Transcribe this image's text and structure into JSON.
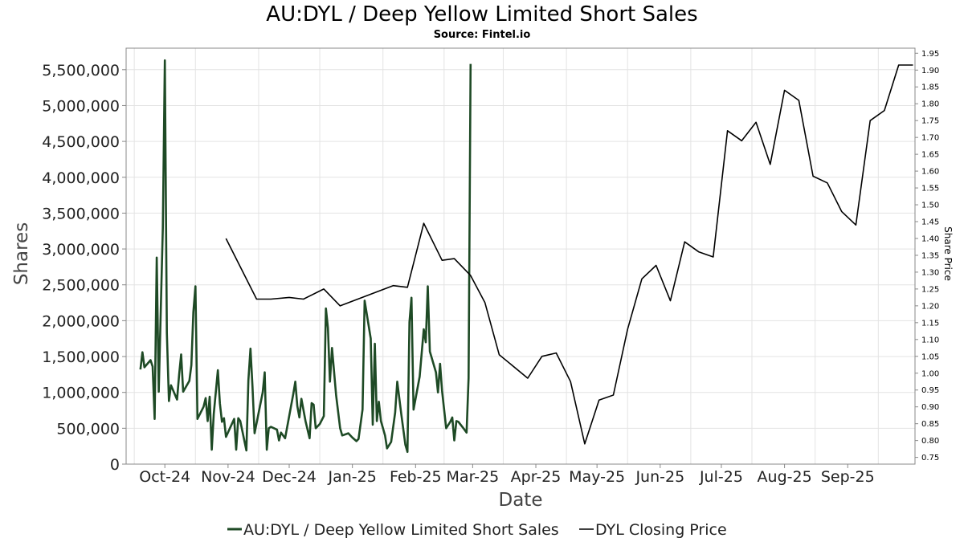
{
  "chart_data": {
    "type": "line",
    "title": "AU:DYL / Deep Yellow Limited Short Sales",
    "subtitle": "Source: Fintel.io",
    "xlabel": "Date",
    "ylabel": "Shares",
    "y2label": "Share Price",
    "xlim": [
      "2024-09-12",
      "2025-10-04"
    ],
    "ylim": [
      0,
      5800000
    ],
    "y2lim": [
      0.73,
      1.965
    ],
    "grid": true,
    "legend_position": "bottom",
    "x_ticks": [
      {
        "label": "Oct-24",
        "date": "2024-10-01"
      },
      {
        "label": "Nov-24",
        "date": "2024-11-01"
      },
      {
        "label": "Dec-24",
        "date": "2024-12-01"
      },
      {
        "label": "Jan-25",
        "date": "2025-01-01"
      },
      {
        "label": "Feb-25",
        "date": "2025-02-01"
      },
      {
        "label": "Mar-25",
        "date": "2025-03-01"
      },
      {
        "label": "Apr-25",
        "date": "2025-04-01"
      },
      {
        "label": "May-25",
        "date": "2025-05-01"
      },
      {
        "label": "Jun-25",
        "date": "2025-06-01"
      },
      {
        "label": "Jul-25",
        "date": "2025-07-01"
      },
      {
        "label": "Aug-25",
        "date": "2025-08-01"
      },
      {
        "label": "Sep-25",
        "date": "2025-09-01"
      }
    ],
    "y_ticks": [
      {
        "label": "0",
        "value": 0
      },
      {
        "label": "500,000",
        "value": 500000
      },
      {
        "label": "1,000,000",
        "value": 1000000
      },
      {
        "label": "1,500,000",
        "value": 1500000
      },
      {
        "label": "2,000,000",
        "value": 2000000
      },
      {
        "label": "2,500,000",
        "value": 2500000
      },
      {
        "label": "3,000,000",
        "value": 3000000
      },
      {
        "label": "3,500,000",
        "value": 3500000
      },
      {
        "label": "4,000,000",
        "value": 4000000
      },
      {
        "label": "4,500,000",
        "value": 4500000
      },
      {
        "label": "5,000,000",
        "value": 5000000
      },
      {
        "label": "5,500,000",
        "value": 5500000
      }
    ],
    "y2_ticks": [
      "0.75",
      "0.80",
      "0.85",
      "0.90",
      "0.95",
      "1.00",
      "1.05",
      "1.10",
      "1.15",
      "1.20",
      "1.25",
      "1.30",
      "1.35",
      "1.40",
      "1.45",
      "1.50",
      "1.55",
      "1.60",
      "1.65",
      "1.70",
      "1.75",
      "1.80",
      "1.85",
      "1.90",
      "1.95"
    ],
    "series": [
      {
        "name": "AU:DYL / Deep Yellow Limited Short Sales",
        "color": "#1e4a25",
        "axis": "left",
        "points": [
          [
            "2024-09-19",
            1320000
          ],
          [
            "2024-09-20",
            1560000
          ],
          [
            "2024-09-21",
            1350000
          ],
          [
            "2024-09-24",
            1450000
          ],
          [
            "2024-09-25",
            1360000
          ],
          [
            "2024-09-26",
            630000
          ],
          [
            "2024-09-27",
            2880000
          ],
          [
            "2024-09-28",
            1010000
          ],
          [
            "2024-09-30",
            3300000
          ],
          [
            "2024-10-01",
            5630000
          ],
          [
            "2024-10-02",
            1830000
          ],
          [
            "2024-10-03",
            880000
          ],
          [
            "2024-10-04",
            1100000
          ],
          [
            "2024-10-07",
            900000
          ],
          [
            "2024-10-08",
            1250000
          ],
          [
            "2024-10-09",
            1530000
          ],
          [
            "2024-10-10",
            1010000
          ],
          [
            "2024-10-13",
            1160000
          ],
          [
            "2024-10-14",
            1380000
          ],
          [
            "2024-10-15",
            2120000
          ],
          [
            "2024-10-16",
            2480000
          ],
          [
            "2024-10-17",
            630000
          ],
          [
            "2024-10-20",
            800000
          ],
          [
            "2024-10-21",
            920000
          ],
          [
            "2024-10-22",
            600000
          ],
          [
            "2024-10-23",
            940000
          ],
          [
            "2024-10-24",
            200000
          ],
          [
            "2024-10-25",
            700000
          ],
          [
            "2024-10-27",
            1310000
          ],
          [
            "2024-10-28",
            850000
          ],
          [
            "2024-10-29",
            590000
          ],
          [
            "2024-10-30",
            640000
          ],
          [
            "2024-10-31",
            380000
          ],
          [
            "2024-11-04",
            630000
          ],
          [
            "2024-11-05",
            200000
          ],
          [
            "2024-11-06",
            640000
          ],
          [
            "2024-11-07",
            600000
          ],
          [
            "2024-11-10",
            190000
          ],
          [
            "2024-11-11",
            1170000
          ],
          [
            "2024-11-12",
            1610000
          ],
          [
            "2024-11-13",
            1080000
          ],
          [
            "2024-11-14",
            430000
          ],
          [
            "2024-11-18",
            1000000
          ],
          [
            "2024-11-19",
            1280000
          ],
          [
            "2024-11-20",
            200000
          ],
          [
            "2024-11-21",
            500000
          ],
          [
            "2024-11-22",
            520000
          ],
          [
            "2024-11-25",
            480000
          ],
          [
            "2024-11-26",
            330000
          ],
          [
            "2024-11-27",
            440000
          ],
          [
            "2024-11-29",
            360000
          ],
          [
            "2024-12-03",
            980000
          ],
          [
            "2024-12-04",
            1150000
          ],
          [
            "2024-12-05",
            810000
          ],
          [
            "2024-12-06",
            650000
          ],
          [
            "2024-12-07",
            910000
          ],
          [
            "2024-12-09",
            600000
          ],
          [
            "2024-12-11",
            360000
          ],
          [
            "2024-12-12",
            850000
          ],
          [
            "2024-12-13",
            830000
          ],
          [
            "2024-12-14",
            500000
          ],
          [
            "2024-12-16",
            560000
          ],
          [
            "2024-12-18",
            670000
          ],
          [
            "2024-12-19",
            2170000
          ],
          [
            "2024-12-20",
            1900000
          ],
          [
            "2024-12-21",
            1150000
          ],
          [
            "2024-12-22",
            1620000
          ],
          [
            "2024-12-24",
            960000
          ],
          [
            "2024-12-26",
            500000
          ],
          [
            "2024-12-27",
            400000
          ],
          [
            "2024-12-30",
            430000
          ],
          [
            "2025-01-01",
            370000
          ],
          [
            "2025-01-03",
            320000
          ],
          [
            "2025-01-04",
            350000
          ],
          [
            "2025-01-06",
            760000
          ],
          [
            "2025-01-07",
            2280000
          ],
          [
            "2025-01-10",
            1750000
          ],
          [
            "2025-01-11",
            550000
          ],
          [
            "2025-01-12",
            1680000
          ],
          [
            "2025-01-13",
            600000
          ],
          [
            "2025-01-14",
            870000
          ],
          [
            "2025-01-15",
            600000
          ],
          [
            "2025-01-17",
            400000
          ],
          [
            "2025-01-18",
            220000
          ],
          [
            "2025-01-20",
            310000
          ],
          [
            "2025-01-22",
            720000
          ],
          [
            "2025-01-23",
            1150000
          ],
          [
            "2025-01-25",
            690000
          ],
          [
            "2025-01-27",
            270000
          ],
          [
            "2025-01-28",
            170000
          ],
          [
            "2025-01-29",
            1980000
          ],
          [
            "2025-01-30",
            2320000
          ],
          [
            "2025-01-31",
            760000
          ],
          [
            "2025-02-03",
            1220000
          ],
          [
            "2025-02-05",
            1880000
          ],
          [
            "2025-02-06",
            1700000
          ],
          [
            "2025-02-07",
            2480000
          ],
          [
            "2025-02-08",
            1570000
          ],
          [
            "2025-02-11",
            1280000
          ],
          [
            "2025-02-12",
            1000000
          ],
          [
            "2025-02-13",
            1400000
          ],
          [
            "2025-02-14",
            1020000
          ],
          [
            "2025-02-16",
            500000
          ],
          [
            "2025-02-18",
            590000
          ],
          [
            "2025-02-19",
            650000
          ],
          [
            "2025-02-20",
            330000
          ],
          [
            "2025-02-21",
            600000
          ],
          [
            "2025-02-22",
            590000
          ],
          [
            "2025-02-25",
            480000
          ],
          [
            "2025-02-26",
            440000
          ],
          [
            "2025-02-27",
            1200000
          ],
          [
            "2025-02-28",
            5580000
          ]
        ]
      },
      {
        "name": "DYL Closing Price",
        "color": "#000000",
        "axis": "right",
        "points": [
          [
            "2024-10-31",
            1.4
          ],
          [
            "2024-11-15",
            1.22
          ],
          [
            "2024-11-22",
            1.22
          ],
          [
            "2024-12-01",
            1.225
          ],
          [
            "2024-12-08",
            1.22
          ],
          [
            "2024-12-18",
            1.25
          ],
          [
            "2024-12-26",
            1.2
          ],
          [
            "2025-01-21",
            1.26
          ],
          [
            "2025-01-28",
            1.255
          ],
          [
            "2025-02-05",
            1.445
          ],
          [
            "2025-02-14",
            1.335
          ],
          [
            "2025-02-20",
            1.34
          ],
          [
            "2025-02-28",
            1.29
          ],
          [
            "2025-03-07",
            1.21
          ],
          [
            "2025-03-14",
            1.055
          ],
          [
            "2025-03-28",
            0.985
          ],
          [
            "2025-04-04",
            1.05
          ],
          [
            "2025-04-11",
            1.06
          ],
          [
            "2025-04-18",
            0.975
          ],
          [
            "2025-04-25",
            0.79
          ],
          [
            "2025-05-02",
            0.92
          ],
          [
            "2025-05-09",
            0.935
          ],
          [
            "2025-05-16",
            1.13
          ],
          [
            "2025-05-23",
            1.28
          ],
          [
            "2025-05-30",
            1.32
          ],
          [
            "2025-06-06",
            1.215
          ],
          [
            "2025-06-13",
            1.39
          ],
          [
            "2025-06-20",
            1.36
          ],
          [
            "2025-06-27",
            1.345
          ],
          [
            "2025-07-04",
            1.72
          ],
          [
            "2025-07-11",
            1.69
          ],
          [
            "2025-07-18",
            1.745
          ],
          [
            "2025-07-25",
            1.62
          ],
          [
            "2025-08-01",
            1.84
          ],
          [
            "2025-08-08",
            1.81
          ],
          [
            "2025-08-15",
            1.585
          ],
          [
            "2025-08-22",
            1.565
          ],
          [
            "2025-08-29",
            1.48
          ],
          [
            "2025-09-05",
            1.44
          ],
          [
            "2025-09-12",
            1.75
          ],
          [
            "2025-09-19",
            1.78
          ],
          [
            "2025-09-26",
            1.915
          ],
          [
            "2025-10-03",
            1.915
          ]
        ]
      }
    ]
  }
}
